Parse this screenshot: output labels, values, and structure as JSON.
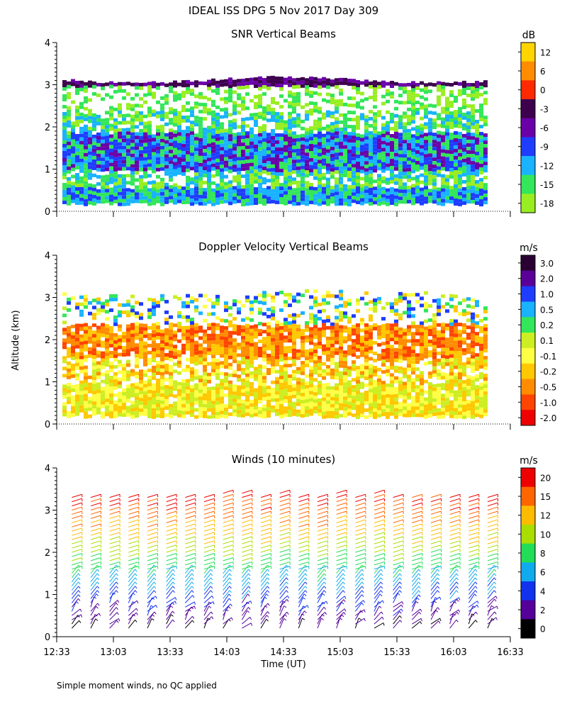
{
  "header": {
    "title": "IDEAL ISS DPG    5 Nov 2017 Day 309"
  },
  "footer": {
    "note": "Simple moment winds, no QC applied"
  },
  "shared": {
    "ylabel": "Altitude (km)",
    "xlabel": "Time (UT)",
    "y_ticks": [
      "0",
      "1",
      "2",
      "3",
      "4"
    ],
    "x_ticks": [
      "12:33",
      "13:03",
      "13:33",
      "14:03",
      "14:33",
      "15:03",
      "15:33",
      "16:03",
      "16:33"
    ]
  },
  "chart_data": [
    {
      "type": "heatmap",
      "title": "SNR Vertical Beams",
      "xlabel": "",
      "ylabel": "Altitude (km)",
      "xlim": [
        "12:33",
        "16:33"
      ],
      "ylim": [
        0,
        4
      ],
      "z_unit": "dB",
      "colorbar_labels": [
        "12",
        "6",
        "0",
        "-3",
        "-6",
        "-9",
        "-12",
        "-15",
        "-18"
      ],
      "colorbar_colors": [
        "#ffd400",
        "#ff8c00",
        "#ff2a00",
        "#3d004d",
        "#6a00a8",
        "#1f3dff",
        "#19b3ff",
        "#33e65a",
        "#99ee22"
      ],
      "echo_top_km": 3.1,
      "echo_bottom_km": 0.2
    },
    {
      "type": "heatmap",
      "title": "Doppler Velocity Vertical Beams",
      "xlabel": "",
      "ylabel": "Altitude (km)",
      "xlim": [
        "12:33",
        "16:33"
      ],
      "ylim": [
        0,
        4
      ],
      "z_unit": "m/s",
      "colorbar_labels": [
        "3.0",
        "2.0",
        "1.0",
        "0.5",
        "0.2",
        "0.1",
        "-0.1",
        "-0.2",
        "-0.5",
        "-1.0",
        "-2.0"
      ],
      "colorbar_colors": [
        "#2a0033",
        "#5a0099",
        "#1f3dff",
        "#19b3ff",
        "#33e65a",
        "#ccee22",
        "#ffff44",
        "#ffc800",
        "#ff8c00",
        "#ff4400",
        "#ee0000"
      ],
      "echo_top_km": 3.1,
      "echo_bottom_km": 0.2
    },
    {
      "type": "wind_barbs",
      "title": "Winds (10 minutes)",
      "xlabel": "Time (UT)",
      "ylabel": "Altitude (km)",
      "xlim": [
        "12:33",
        "16:33"
      ],
      "ylim": [
        0,
        4
      ],
      "z_unit": "m/s",
      "colorbar_labels": [
        "20",
        "15",
        "12",
        "10",
        "8",
        "6",
        "4",
        "2",
        "0"
      ],
      "colorbar_colors": [
        "#ee0000",
        "#ff6600",
        "#ffbb00",
        "#aadd00",
        "#22dd55",
        "#11aaee",
        "#1133ee",
        "#550099",
        "#000000"
      ],
      "profile_times": [
        "12:38",
        "12:48",
        "12:58",
        "13:08",
        "13:18",
        "13:28",
        "13:38",
        "13:48",
        "13:58",
        "14:08",
        "14:18",
        "14:28",
        "14:38",
        "14:48",
        "14:58",
        "15:08",
        "15:18",
        "15:28",
        "15:38",
        "15:48",
        "15:58",
        "16:08",
        "16:18"
      ],
      "top_speed_ms": 18,
      "top_height_km": 3.4
    }
  ]
}
